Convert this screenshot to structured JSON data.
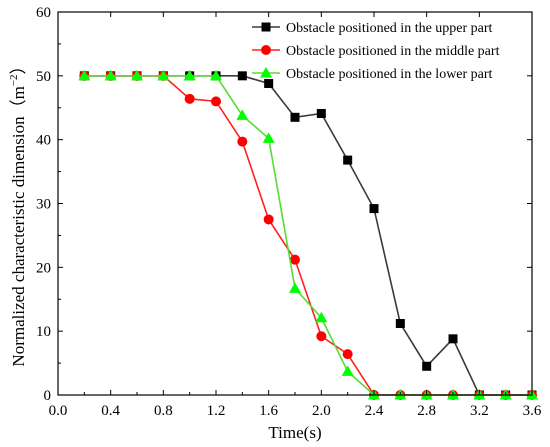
{
  "chart_data": {
    "type": "line",
    "title": "",
    "xlabel": "Time(s)",
    "ylabel_main": "Normalized characteristic dimension（m",
    "ylabel_sup": "−2",
    "ylabel_close": "）",
    "xlim": [
      0.0,
      3.6
    ],
    "ylim": [
      0,
      60
    ],
    "xticks": [
      "0.0",
      "0.4",
      "0.8",
      "1.2",
      "1.6",
      "2.0",
      "2.4",
      "2.8",
      "3.2",
      "3.6"
    ],
    "yticks": [
      "0",
      "10",
      "20",
      "30",
      "40",
      "50",
      "60"
    ],
    "grid": false,
    "legend_position": "top-right",
    "series": [
      {
        "name": "Obstacle positioned in the upper part",
        "color": "#000000",
        "marker": "square",
        "x": [
          0.2,
          0.4,
          0.6,
          0.8,
          1.0,
          1.2,
          1.4,
          1.6,
          1.8,
          2.0,
          2.2,
          2.4,
          2.6,
          2.8,
          3.0,
          3.2,
          3.4,
          3.6
        ],
        "y": [
          50,
          50,
          50,
          50,
          50,
          50,
          50,
          48.8,
          43.5,
          44.1,
          36.8,
          29.2,
          11.2,
          4.5,
          8.8,
          0,
          0,
          0
        ]
      },
      {
        "name": "Obstacle positioned in the middle part",
        "color": "#ff0000",
        "marker": "circle",
        "x": [
          0.2,
          0.4,
          0.6,
          0.8,
          1.0,
          1.2,
          1.4,
          1.6,
          1.8,
          2.0,
          2.2,
          2.4,
          2.6,
          2.8,
          3.0,
          3.2,
          3.4,
          3.6
        ],
        "y": [
          50,
          50,
          50,
          50,
          46.4,
          46.0,
          39.7,
          27.5,
          21.2,
          9.2,
          6.4,
          0,
          0,
          0,
          0,
          0,
          0,
          0
        ]
      },
      {
        "name": "Obstacle positioned in the lower part",
        "color": "#00ff00",
        "marker": "triangle",
        "x": [
          0.2,
          0.4,
          0.6,
          0.8,
          1.0,
          1.2,
          1.4,
          1.6,
          1.8,
          2.0,
          2.2,
          2.4,
          2.6,
          2.8,
          3.0,
          3.2,
          3.4,
          3.6
        ],
        "y": [
          50,
          50,
          50,
          50,
          50,
          50,
          43.8,
          40.2,
          16.7,
          12.1,
          3.7,
          0,
          0,
          0,
          0,
          0,
          0,
          0
        ]
      }
    ]
  }
}
